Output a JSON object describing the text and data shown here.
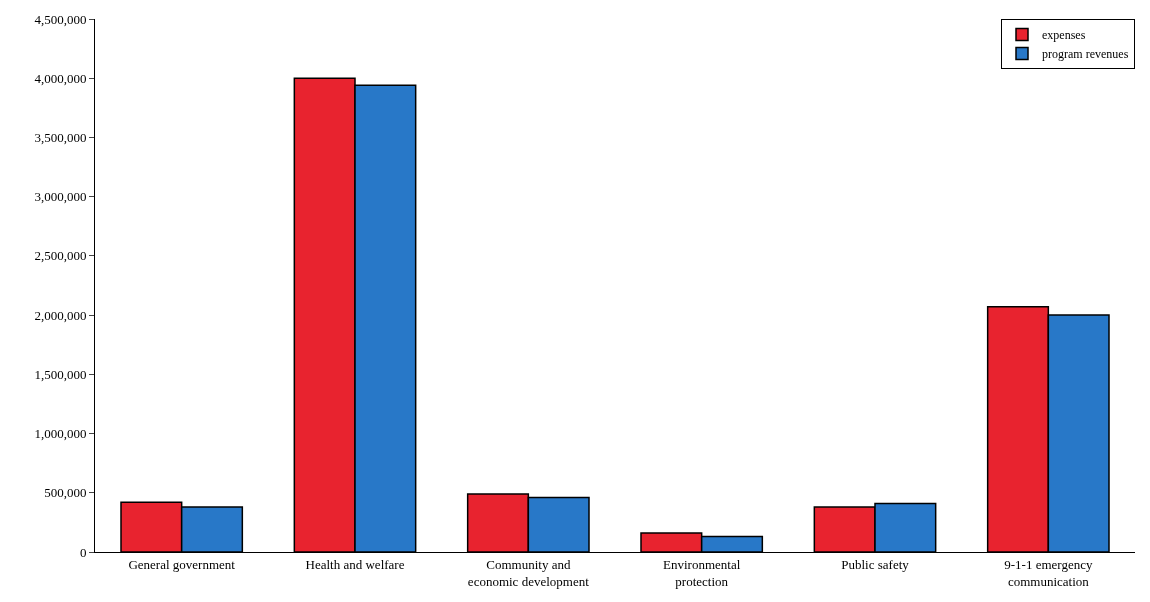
{
  "chart_data": {
    "type": "bar",
    "categories": [
      "General government",
      "Health and welfare",
      "Community and\neconomic development",
      "Environmental\nprotection",
      "Public safety",
      "9-1-1 emergency\ncommunication"
    ],
    "series": [
      {
        "name": "expenses",
        "color": "#e8232f",
        "values": [
          420000,
          4000000,
          490000,
          160000,
          380000,
          2070000
        ]
      },
      {
        "name": "program revenues",
        "color": "#2878c8",
        "values": [
          380000,
          3940000,
          460000,
          130000,
          410000,
          2000000
        ]
      }
    ],
    "ylim": [
      0,
      4500000
    ],
    "yticks": [
      {
        "value": 0,
        "label": "0"
      },
      {
        "value": 500000,
        "label": "500,000"
      },
      {
        "value": 1000000,
        "label": "1,000,000"
      },
      {
        "value": 1500000,
        "label": "1,500,000"
      },
      {
        "value": 2000000,
        "label": "2,000,000"
      },
      {
        "value": 2500000,
        "label": "2,500,000"
      },
      {
        "value": 3000000,
        "label": "3,000,000"
      },
      {
        "value": 3500000,
        "label": "3,500,000"
      },
      {
        "value": 4000000,
        "label": "4,000,000"
      },
      {
        "value": 4500000,
        "label": "4,500,000"
      }
    ],
    "grid": false,
    "legend": "top right"
  }
}
